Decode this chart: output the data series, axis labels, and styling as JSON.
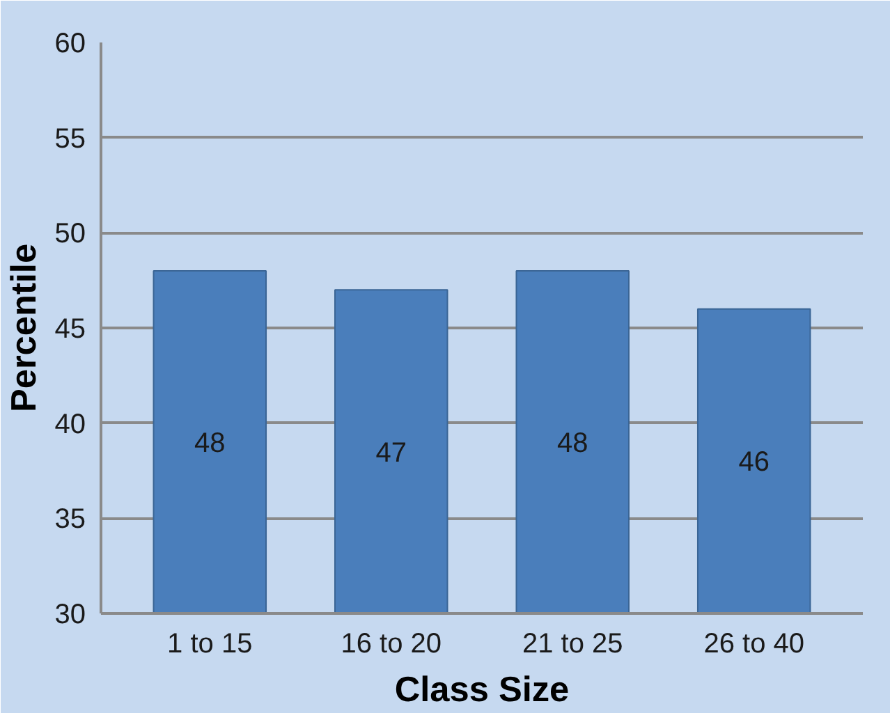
{
  "chart_data": {
    "type": "bar",
    "xlabel": "Class Size",
    "ylabel": "Percentile",
    "categories": [
      "1 to 15",
      "16 to 20",
      "21 to 25",
      "26 to 40"
    ],
    "values": [
      48,
      47,
      48,
      46
    ],
    "color": "#4a7ebb",
    "ylim": [
      30,
      60
    ],
    "yticks": [
      30,
      35,
      40,
      45,
      50,
      55,
      60
    ],
    "grid": "y",
    "data_labels": true
  }
}
